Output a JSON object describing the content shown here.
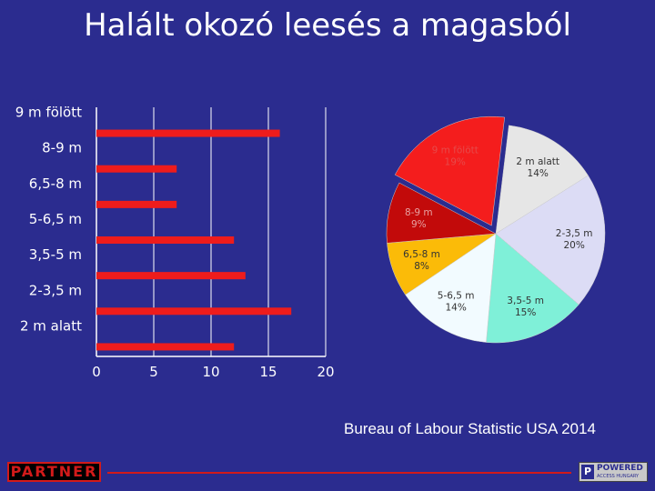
{
  "slide": {
    "title": "Halált okozó leesés a magasból",
    "source": "Bureau of Labour Statistic USA 2014"
  },
  "logos": {
    "partner": "PARTNER",
    "powered": "POWERED",
    "powered_sub": "ACCESS HUNGARY"
  },
  "colors": {
    "background": "#2b2c8f",
    "bar": "#ee1c1c",
    "axis": "#ffffff"
  },
  "chart_data": [
    {
      "type": "bar",
      "orientation": "horizontal",
      "categories": [
        "9 m fölött",
        "8-9 m",
        "6,5-8 m",
        "5-6,5 m",
        "3,5-5 m",
        "2-3,5 m",
        "2 m alatt"
      ],
      "values": [
        16,
        7,
        7,
        12,
        13,
        17,
        12
      ],
      "xticks": [
        0,
        5,
        10,
        15,
        20
      ],
      "xlim": [
        0,
        20
      ],
      "grid": true
    },
    {
      "type": "pie",
      "labels": [
        "2 m alatt",
        "2-3,5 m",
        "3,5-5 m",
        "5-6,5 m",
        "6,5-8 m",
        "8-9 m",
        "9 m fölött"
      ],
      "values": [
        14,
        20,
        15,
        14,
        8,
        9,
        19
      ],
      "percent_labels": [
        "14%",
        "20%",
        "15%",
        "14%",
        "8%",
        "9%",
        "19%"
      ],
      "colors": [
        "#e6e6e6",
        "#dcdcf5",
        "#7ff0d8",
        "#f2fbff",
        "#fbbb08",
        "#c20a0a",
        "#f41d1d"
      ],
      "label_colors": [
        "#333333",
        "#333333",
        "#333333",
        "#333333",
        "#333333",
        "#e6a0a0",
        "#e64a4a"
      ]
    }
  ]
}
